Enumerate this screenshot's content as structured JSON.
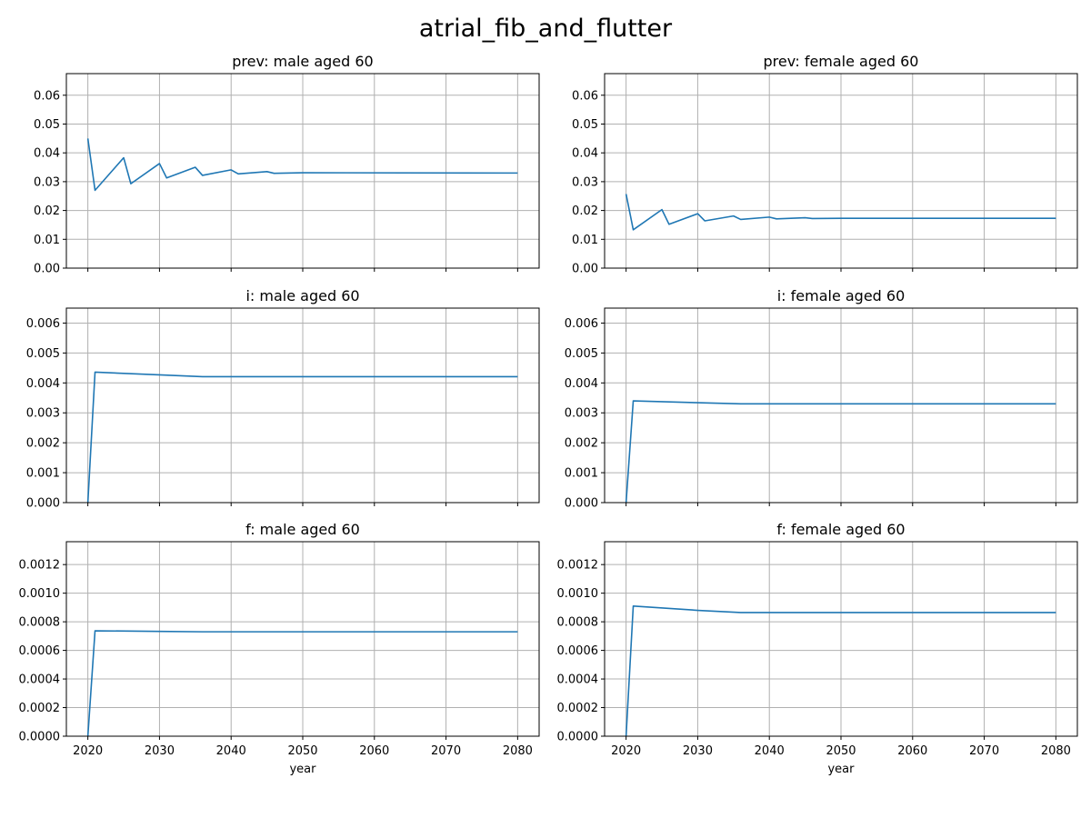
{
  "figure_title": "atrial_fib_and_flutter",
  "chart_data": [
    {
      "type": "line",
      "title": "prev: male aged 60",
      "xlabel": "",
      "ylabel": "",
      "xlim": [
        2017,
        2083
      ],
      "ylim": [
        0,
        0.0675
      ],
      "xticks": [
        2020,
        2030,
        2040,
        2050,
        2060,
        2070,
        2080
      ],
      "show_xtick_labels": false,
      "yticks": [
        "0.00",
        "0.01",
        "0.02",
        "0.03",
        "0.04",
        "0.05",
        "0.06"
      ],
      "grid": true,
      "color": "#1f77b4",
      "x": [
        2020,
        2021,
        2025,
        2026,
        2030,
        2031,
        2035,
        2036,
        2040,
        2041,
        2045,
        2046,
        2050,
        2080
      ],
      "y": [
        0.045,
        0.027,
        0.0383,
        0.0293,
        0.0363,
        0.0313,
        0.035,
        0.0322,
        0.0341,
        0.0327,
        0.0335,
        0.0329,
        0.0331,
        0.033
      ]
    },
    {
      "type": "line",
      "title": "prev: female aged 60",
      "xlabel": "",
      "ylabel": "",
      "xlim": [
        2017,
        2083
      ],
      "ylim": [
        0,
        0.0675
      ],
      "xticks": [
        2020,
        2030,
        2040,
        2050,
        2060,
        2070,
        2080
      ],
      "show_xtick_labels": false,
      "yticks": [
        "0.00",
        "0.01",
        "0.02",
        "0.03",
        "0.04",
        "0.05",
        "0.06"
      ],
      "grid": true,
      "color": "#1f77b4",
      "x": [
        2020,
        2021,
        2025,
        2026,
        2030,
        2031,
        2035,
        2036,
        2040,
        2041,
        2045,
        2046,
        2050,
        2080
      ],
      "y": [
        0.0257,
        0.0133,
        0.0203,
        0.0152,
        0.0189,
        0.0164,
        0.0181,
        0.0169,
        0.0177,
        0.0171,
        0.0175,
        0.0172,
        0.0173,
        0.0173
      ]
    },
    {
      "type": "line",
      "title": "i: male aged 60",
      "xlabel": "",
      "ylabel": "",
      "xlim": [
        2017,
        2083
      ],
      "ylim": [
        0,
        0.0065
      ],
      "xticks": [
        2020,
        2030,
        2040,
        2050,
        2060,
        2070,
        2080
      ],
      "show_xtick_labels": false,
      "yticks": [
        "0.000",
        "0.001",
        "0.002",
        "0.003",
        "0.004",
        "0.005",
        "0.006"
      ],
      "grid": true,
      "color": "#1f77b4",
      "x": [
        2020,
        2021,
        2030,
        2036,
        2080
      ],
      "y": [
        0.0,
        0.00436,
        0.00427,
        0.00421,
        0.00421
      ]
    },
    {
      "type": "line",
      "title": "i: female aged 60",
      "xlabel": "",
      "ylabel": "",
      "xlim": [
        2017,
        2083
      ],
      "ylim": [
        0,
        0.0065
      ],
      "xticks": [
        2020,
        2030,
        2040,
        2050,
        2060,
        2070,
        2080
      ],
      "show_xtick_labels": false,
      "yticks": [
        "0.000",
        "0.001",
        "0.002",
        "0.003",
        "0.004",
        "0.005",
        "0.006"
      ],
      "grid": true,
      "color": "#1f77b4",
      "x": [
        2020,
        2021,
        2030,
        2036,
        2080
      ],
      "y": [
        0.0,
        0.0034,
        0.00334,
        0.0033,
        0.0033
      ]
    },
    {
      "type": "line",
      "title": "f: male aged 60",
      "xlabel": "year",
      "ylabel": "",
      "xlim": [
        2017,
        2083
      ],
      "ylim": [
        0,
        0.00136
      ],
      "xticks": [
        2020,
        2030,
        2040,
        2050,
        2060,
        2070,
        2080
      ],
      "show_xtick_labels": true,
      "yticks": [
        "0.0000",
        "0.0002",
        "0.0004",
        "0.0006",
        "0.0008",
        "0.0010",
        "0.0012"
      ],
      "grid": true,
      "color": "#1f77b4",
      "x": [
        2020,
        2021,
        2030,
        2036,
        2080
      ],
      "y": [
        0.0,
        0.000737,
        0.000733,
        0.00073,
        0.00073
      ]
    },
    {
      "type": "line",
      "title": "f: female aged 60",
      "xlabel": "year",
      "ylabel": "",
      "xlim": [
        2017,
        2083
      ],
      "ylim": [
        0,
        0.00136
      ],
      "xticks": [
        2020,
        2030,
        2040,
        2050,
        2060,
        2070,
        2080
      ],
      "show_xtick_labels": true,
      "yticks": [
        "0.0000",
        "0.0002",
        "0.0004",
        "0.0006",
        "0.0008",
        "0.0010",
        "0.0012"
      ],
      "grid": true,
      "color": "#1f77b4",
      "x": [
        2020,
        2021,
        2030,
        2036,
        2080
      ],
      "y": [
        0.0,
        0.00091,
        0.00088,
        0.000865,
        0.000865
      ]
    }
  ]
}
